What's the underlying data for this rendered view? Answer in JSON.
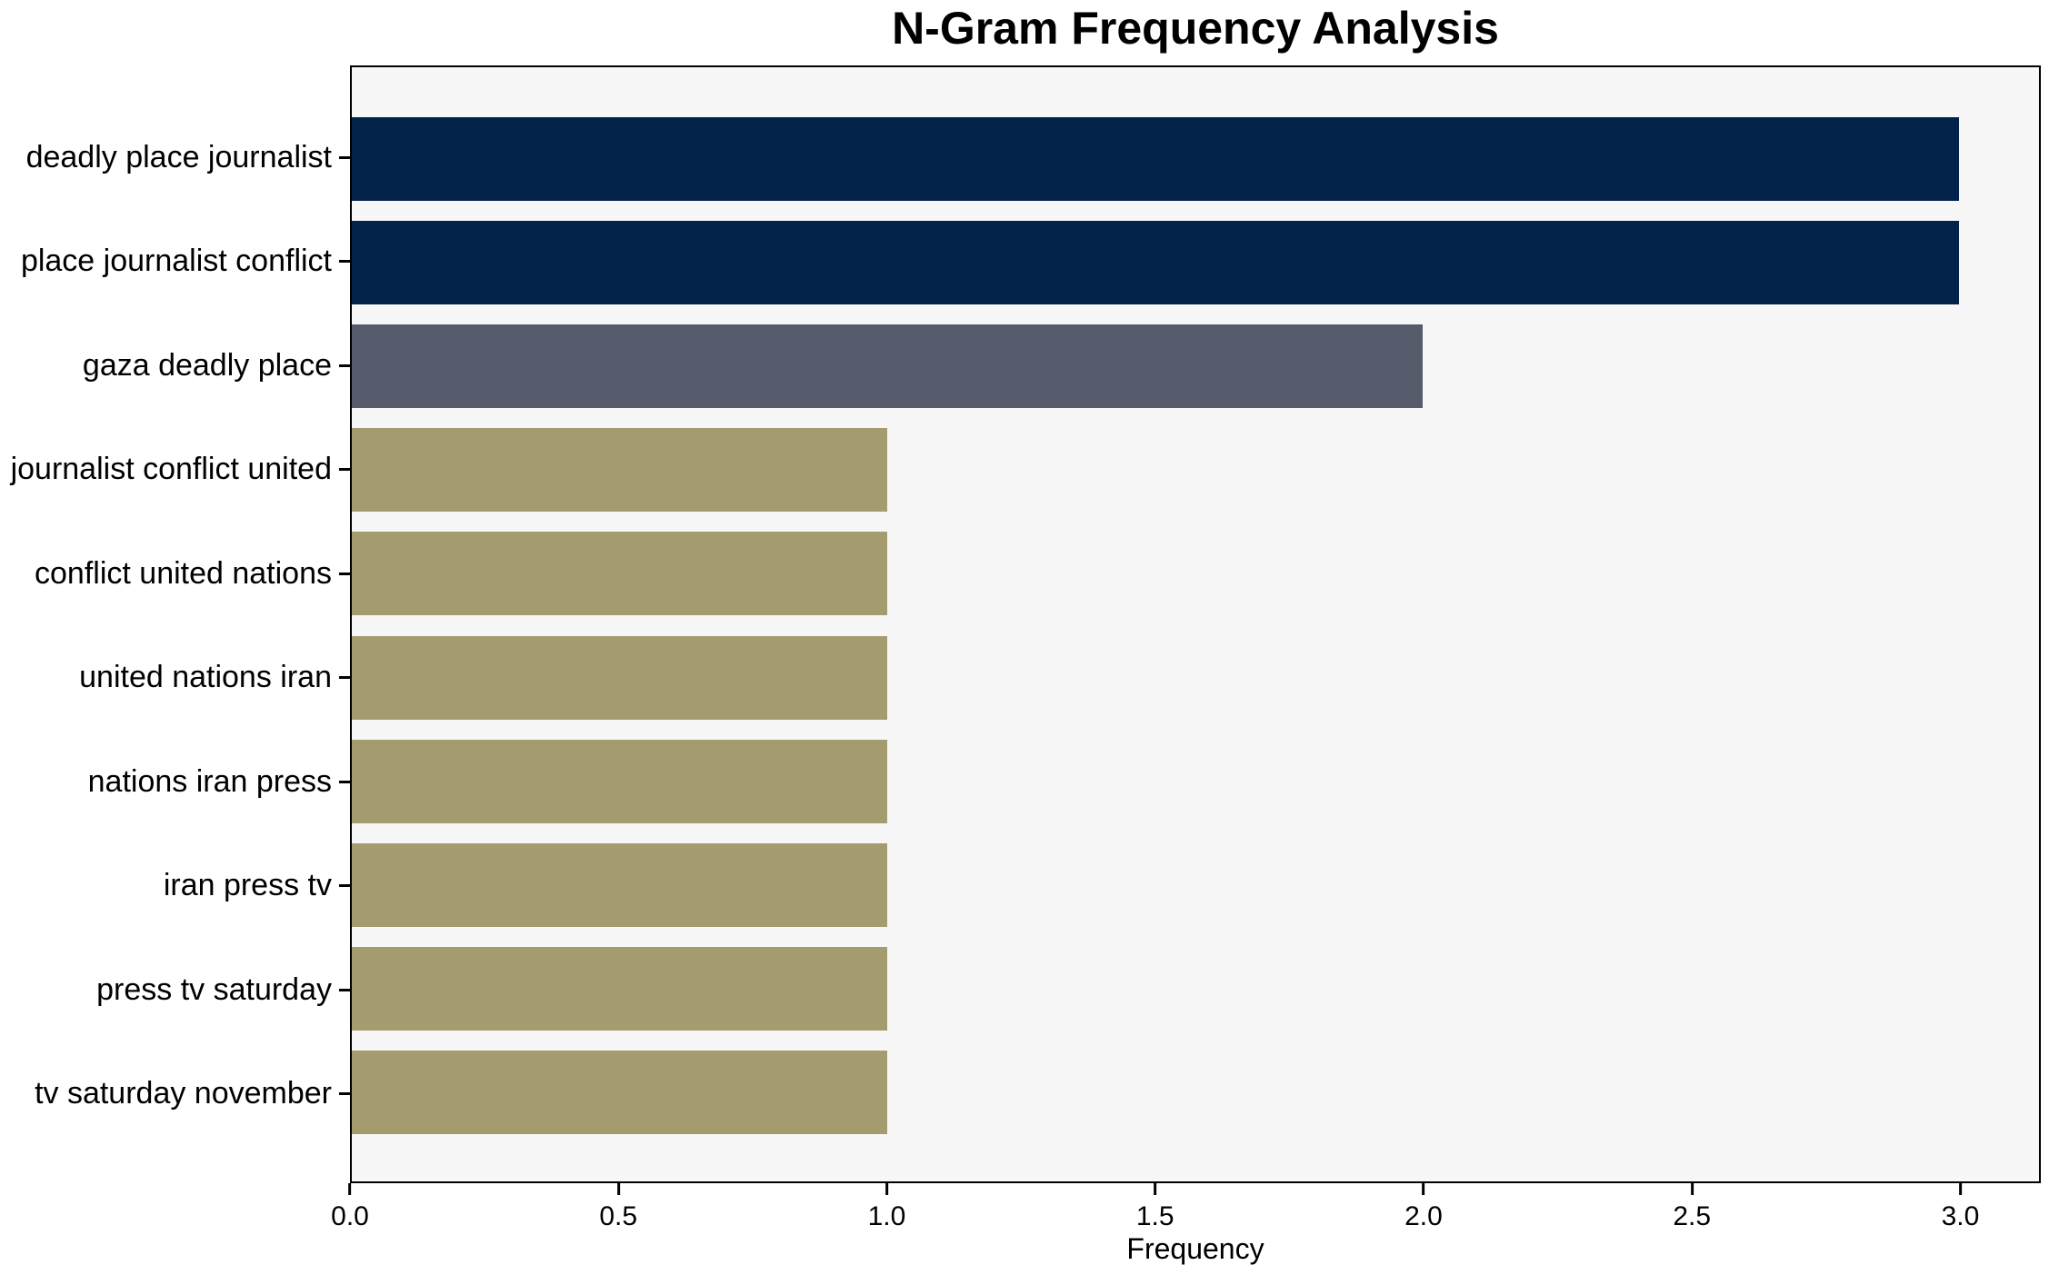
{
  "chart_data": {
    "type": "bar",
    "orientation": "horizontal",
    "title": "N-Gram Frequency Analysis",
    "xlabel": "Frequency",
    "ylabel": "",
    "categories": [
      "deadly place journalist",
      "place journalist conflict",
      "gaza deadly place",
      "journalist conflict united",
      "conflict united nations",
      "united nations iran",
      "nations iran press",
      "iran press tv",
      "press tv saturday",
      "tv saturday november"
    ],
    "values": [
      3,
      3,
      2,
      1,
      1,
      1,
      1,
      1,
      1,
      1
    ],
    "bar_colors": [
      "#03234b",
      "#03234b",
      "#575c6c",
      "#a49c6f",
      "#a49c6f",
      "#a49c6f",
      "#a49c6f",
      "#a49c6f",
      "#a49c6f",
      "#a49c6f"
    ],
    "xlim": [
      0,
      3.15
    ],
    "xtick_labels": [
      "0.0",
      "0.5",
      "1.0",
      "1.5",
      "2.0",
      "2.5",
      "3.0"
    ],
    "xtick_values": [
      0,
      0.5,
      1.0,
      1.5,
      2.0,
      2.5,
      3.0
    ],
    "grid": false,
    "legend_position": "none",
    "colors": {
      "bar_frequency_3": "#03234b",
      "bar_frequency_2": "#575c6c",
      "bar_frequency_1": "#a49c6f",
      "plot_background": "#f7f7f7",
      "figure_background": "#ffffff",
      "axis": "#000000",
      "text": "#000000"
    }
  }
}
